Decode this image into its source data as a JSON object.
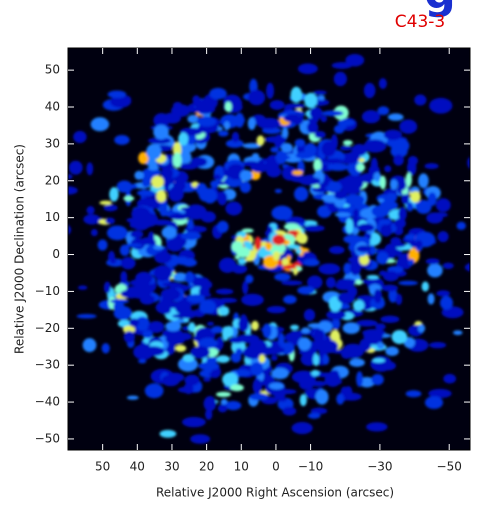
{
  "chart_data": {
    "type": "image",
    "heading": "g",
    "label": "C43-3",
    "x_label": "Relative J2000 Right Ascension (arcsec)",
    "y_label": "Relative J2000 Declination (arcsec)",
    "xlim": [
      60,
      -56
    ],
    "ylim": [
      -53,
      56
    ],
    "xticks": [
      50,
      40,
      30,
      20,
      10,
      0,
      {
        "value": -10,
        "label": "−10"
      },
      {
        "value": -30,
        "label": "−30"
      },
      {
        "value": -50,
        "label": "−50"
      }
    ],
    "yticks": [
      50,
      40,
      30,
      20,
      10,
      0,
      {
        "value": -10,
        "label": "−10"
      },
      {
        "value": -20,
        "label": "−20"
      },
      {
        "value": -30,
        "label": "−30"
      },
      {
        "value": -40,
        "label": "−40"
      },
      {
        "value": -50,
        "label": "−50"
      }
    ]
  }
}
